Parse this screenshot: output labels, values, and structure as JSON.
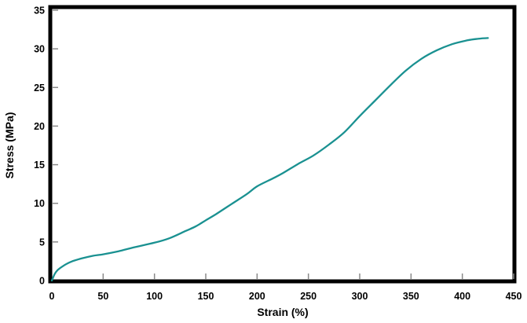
{
  "figure": {
    "background": "#ffffff",
    "frame_color": "#000000",
    "curve_color": "#1a9191",
    "tick_color": "#8a8a8a",
    "text_color": "#000000"
  },
  "chart_data": {
    "type": "line",
    "title": "",
    "xlabel": "Strain (%)",
    "ylabel": "Stress (MPa)",
    "xlim": [
      0,
      450
    ],
    "ylim": [
      0,
      35
    ],
    "x_ticks": [
      0,
      50,
      100,
      150,
      200,
      250,
      300,
      350,
      400,
      450
    ],
    "y_ticks": [
      0,
      5,
      10,
      15,
      20,
      25,
      30,
      35
    ],
    "grid": false,
    "legend": "none",
    "series": [
      {
        "name": "stress-strain-curve",
        "color": "#1a9191",
        "x": [
          0,
          3,
          6,
          10,
          15,
          20,
          30,
          40,
          50,
          65,
          80,
          100,
          115,
          130,
          140,
          150,
          160,
          175,
          190,
          200,
          215,
          225,
          240,
          255,
          270,
          285,
          300,
          315,
          330,
          345,
          360,
          375,
          390,
          405,
          415,
          425
        ],
        "y": [
          0,
          0.9,
          1.4,
          1.8,
          2.2,
          2.5,
          2.9,
          3.2,
          3.4,
          3.8,
          4.3,
          4.9,
          5.5,
          6.4,
          7.0,
          7.8,
          8.6,
          9.9,
          11.2,
          12.2,
          13.2,
          13.9,
          15.1,
          16.2,
          17.6,
          19.2,
          21.3,
          23.3,
          25.3,
          27.2,
          28.7,
          29.8,
          30.6,
          31.1,
          31.3,
          31.4
        ]
      }
    ]
  }
}
